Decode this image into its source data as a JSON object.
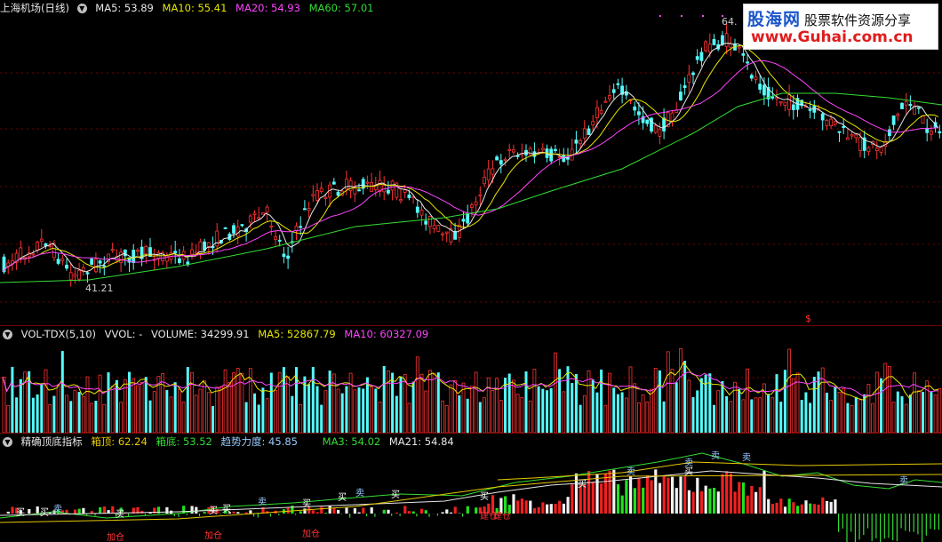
{
  "main_pane": {
    "title": "上海机场(日线)",
    "indicators": [
      {
        "label": "MA5: 53.89",
        "color": "#e6e6e6"
      },
      {
        "label": "MA10: 55.41",
        "color": "#e6e600"
      },
      {
        "label": "MA20: 54.93",
        "color": "#ff44ff"
      },
      {
        "label": "MA60: 57.01",
        "color": "#33dd33"
      }
    ],
    "high_label": "64.",
    "low_label": "41.21",
    "marker": "$"
  },
  "volume_pane": {
    "title": "VOL-TDX(5,10)",
    "indicators": [
      {
        "label": "VVOL: -",
        "color": "#e6e6e6"
      },
      {
        "label": "VOLUME: 34299.91",
        "color": "#e6e6e6"
      },
      {
        "label": "MA5: 52867.79",
        "color": "#e6e600"
      },
      {
        "label": "MA10: 60327.09",
        "color": "#ff44ff"
      }
    ]
  },
  "indicator_pane": {
    "title": "精确顶底指标",
    "indicators": [
      {
        "label": "箱顶: 62.24",
        "color": "#e6c800"
      },
      {
        "label": "箱底: 53.52",
        "color": "#33dd33"
      },
      {
        "label": "趋势力度: 45.85",
        "color": "#99ccff"
      },
      {
        "label": "MA3: 54.02",
        "color": "#33dd33"
      },
      {
        "label": "MA21: 54.84",
        "color": "#e6e6e6"
      }
    ],
    "signal_sell": "卖",
    "signal_buy": "买",
    "signal_build": "建仓",
    "signal_add": "加仓"
  },
  "watermark": {
    "brand": "股海网",
    "slogan": "股票软件资源分享",
    "url": "www.Guhai.com.cn"
  },
  "colors": {
    "up": "#ff3232",
    "down": "#54fcfc",
    "ma5": "#e6e6e6",
    "ma10": "#e6e600",
    "ma20": "#ff44ff",
    "ma60": "#33dd33",
    "grid": "#7a0000"
  }
}
